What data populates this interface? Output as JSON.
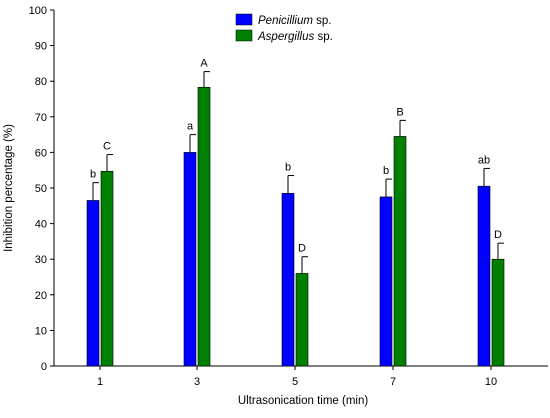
{
  "chart_data": {
    "type": "bar",
    "xlabel": "Ultrasonication time (min)",
    "ylabel": "Inhibition percentage (%)",
    "ylim": [
      0,
      100
    ],
    "yticks": [
      0,
      10,
      20,
      30,
      40,
      50,
      60,
      70,
      80,
      90,
      100
    ],
    "categories": [
      "1",
      "3",
      "5",
      "7",
      "10"
    ],
    "legend_position": "top-center",
    "grid": false,
    "series": [
      {
        "name": "Penicillium",
        "name_suffix": "sp.",
        "color": "#0000ff",
        "values": [
          46.5,
          60.0,
          48.5,
          47.5,
          50.5
        ],
        "errors": [
          5.0,
          5.0,
          5.0,
          5.0,
          5.0
        ],
        "letters": [
          "b",
          "a",
          "b",
          "b",
          "ab"
        ]
      },
      {
        "name": "Aspergillus",
        "name_suffix": "sp.",
        "color": "#008000",
        "values": [
          54.7,
          78.3,
          26.0,
          64.5,
          30.0
        ],
        "errors": [
          4.7,
          4.4,
          4.7,
          4.5,
          4.5
        ],
        "letters": [
          "C",
          "A",
          "D",
          "B",
          "D"
        ]
      }
    ]
  }
}
